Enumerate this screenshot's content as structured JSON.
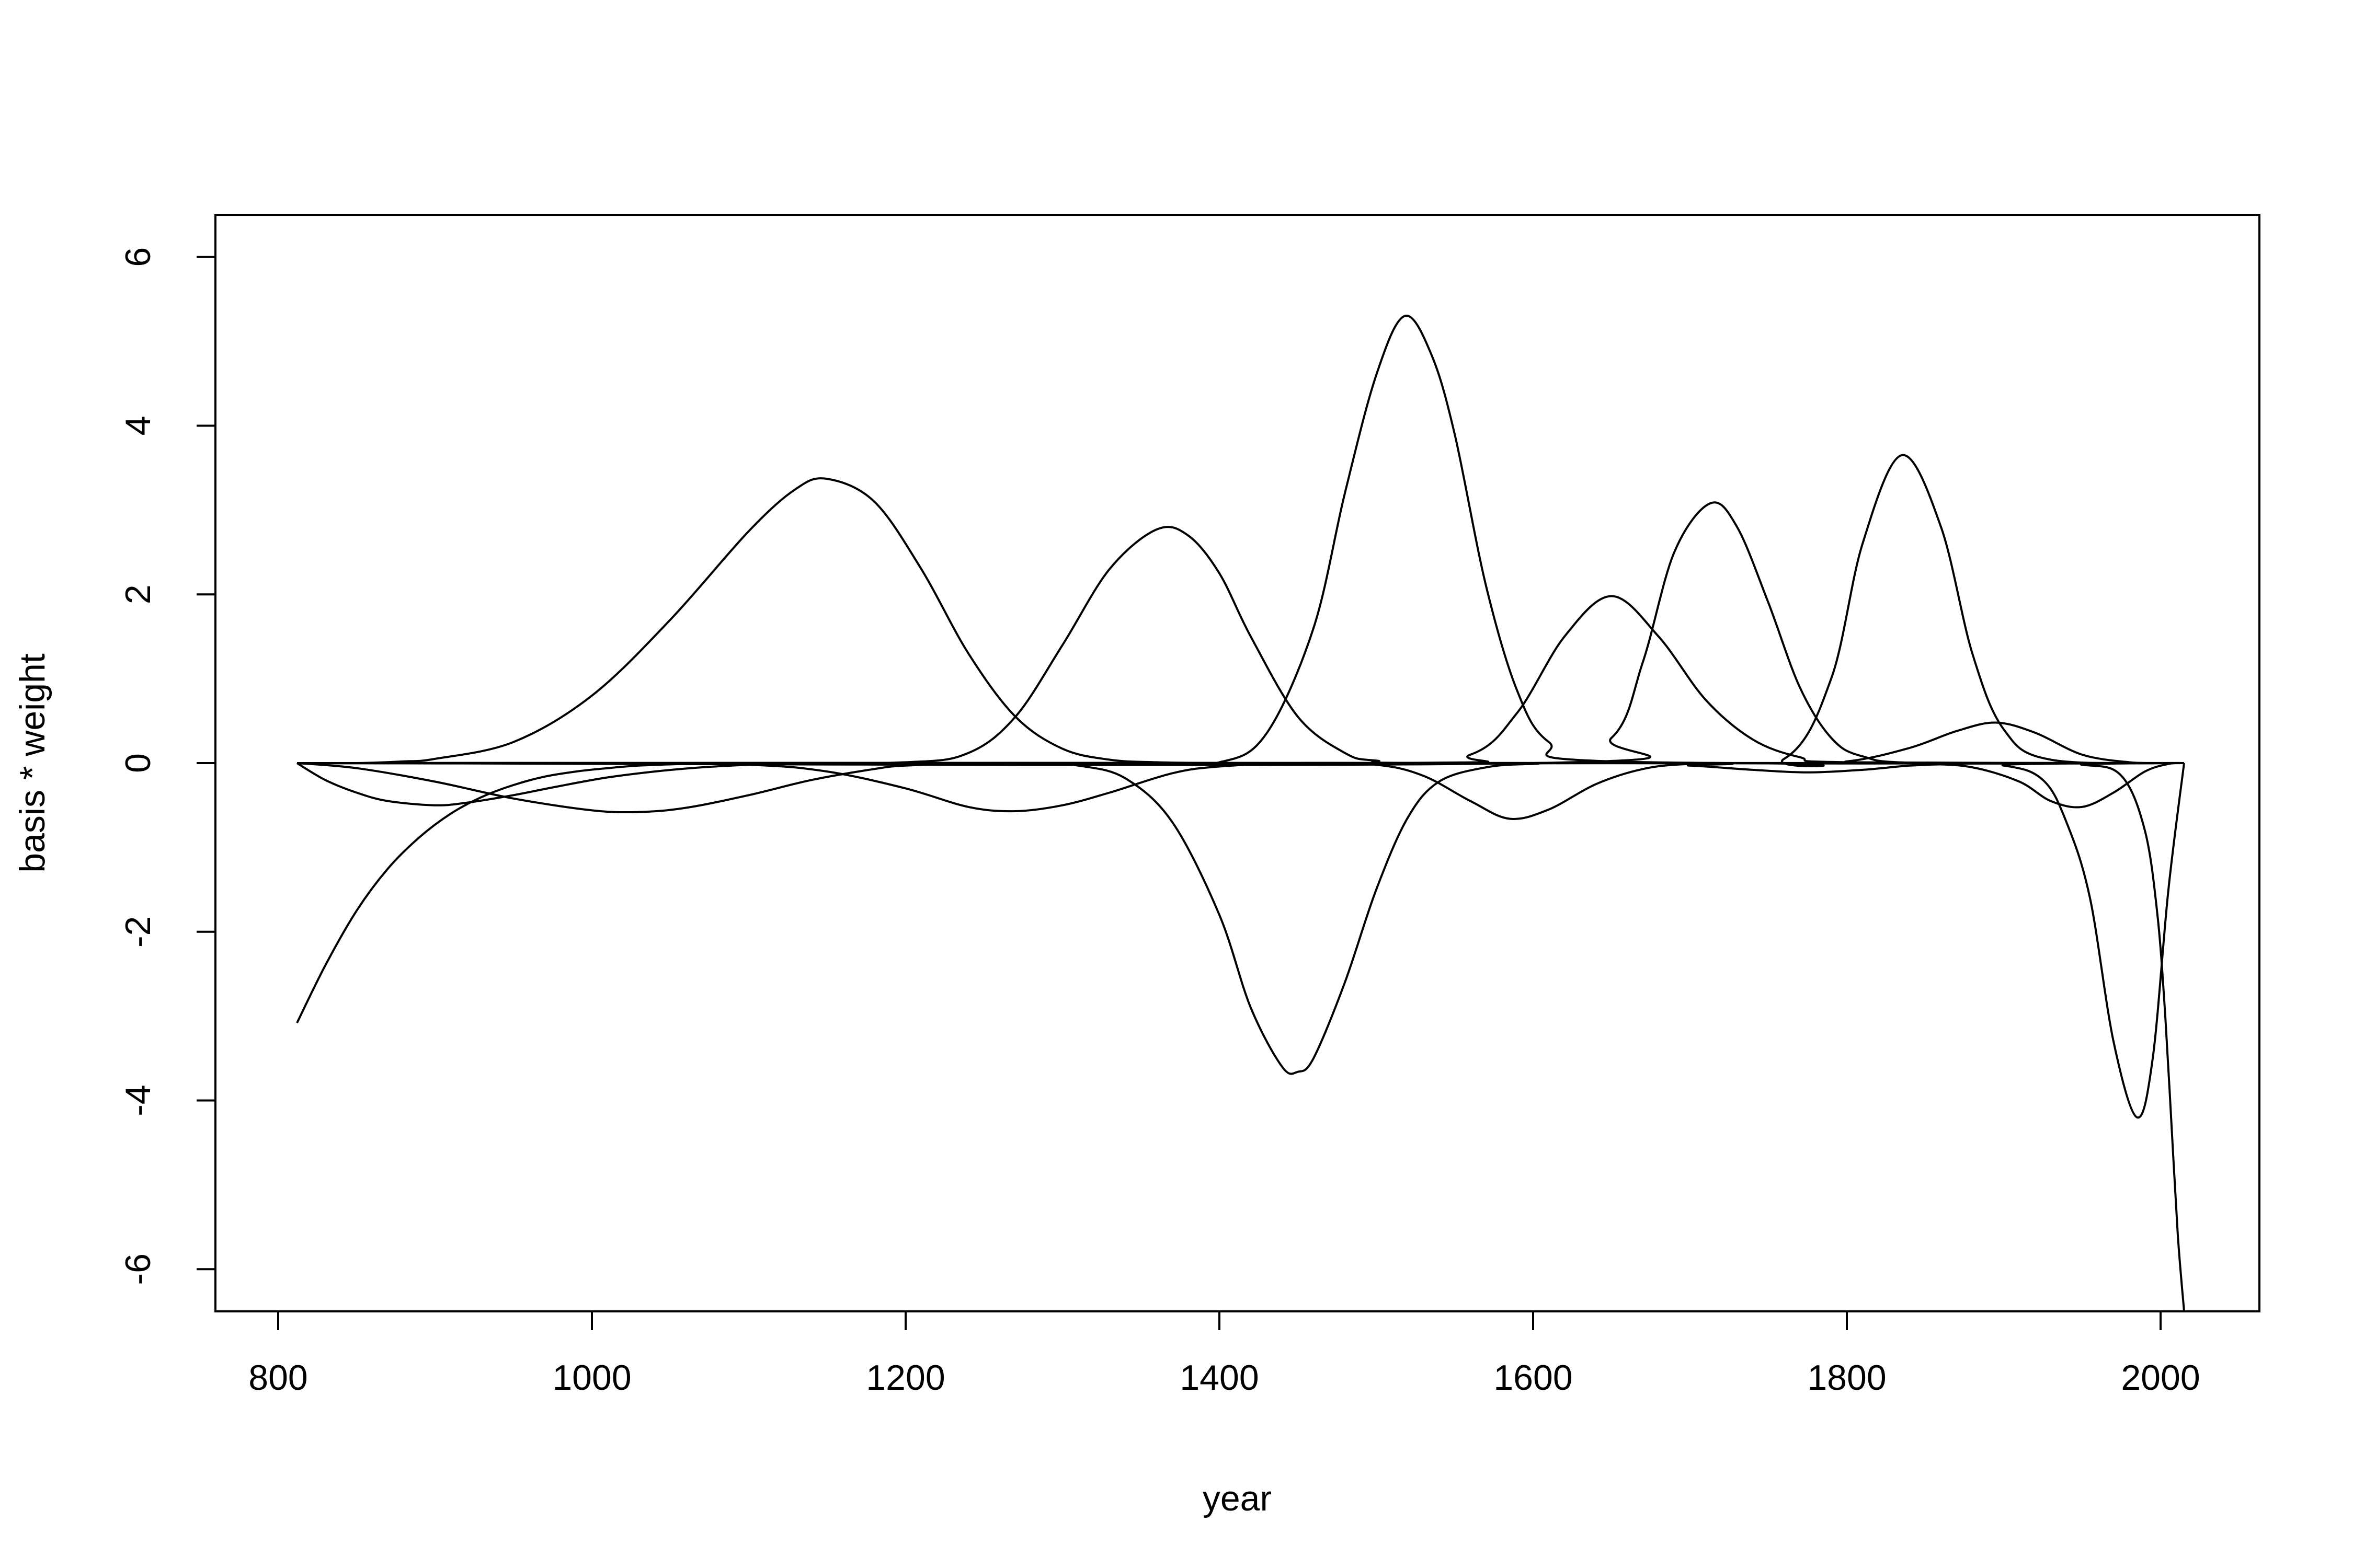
{
  "chart_data": {
    "type": "line",
    "title": "",
    "xlabel": "year",
    "ylabel": "basis * weight",
    "xlim": [
      760,
      2063
    ],
    "ylim": [
      -6.5,
      6.5
    ],
    "x_ticks": [
      800,
      1000,
      1200,
      1400,
      1600,
      1800,
      2000
    ],
    "y_ticks": [
      -6,
      -4,
      -2,
      0,
      2,
      4,
      6
    ],
    "x_tick_labels": [
      "800",
      "1000",
      "1200",
      "1400",
      "1600",
      "1800",
      "2000"
    ],
    "y_tick_labels": [
      "-6",
      "-4",
      "-2",
      "0",
      "2",
      "4",
      "6"
    ],
    "grid": false,
    "legend": "none",
    "line_color": "#000000",
    "series": [
      {
        "x": [
          812,
          830,
          850,
          870,
          890,
          910,
          930,
          950,
          970,
          990,
          1010,
          1030,
          1060,
          1100,
          1150,
          1200,
          1300,
          1400,
          1500,
          1600,
          1700,
          1800,
          1900,
          2015
        ],
        "values": [
          -3.08,
          -2.4,
          -1.75,
          -1.25,
          -0.88,
          -0.6,
          -0.4,
          -0.26,
          -0.16,
          -0.1,
          -0.06,
          -0.03,
          -0.01,
          0,
          0,
          0,
          0,
          0,
          0,
          0,
          0,
          0,
          0,
          0
        ]
      },
      {
        "x": [
          812,
          830,
          850,
          870,
          900,
          920,
          950,
          980,
          1010,
          1040,
          1070,
          1100,
          1130,
          1160,
          1200,
          1300,
          1400,
          1600,
          1800,
          2015
        ],
        "values": [
          0,
          -0.2,
          -0.35,
          -0.45,
          -0.5,
          -0.47,
          -0.38,
          -0.27,
          -0.17,
          -0.1,
          -0.05,
          -0.02,
          0,
          0,
          0,
          0,
          0,
          0,
          0,
          0
        ]
      },
      {
        "x": [
          812,
          850,
          900,
          950,
          1000,
          1030,
          1060,
          1100,
          1140,
          1180,
          1200,
          1250,
          1300,
          1400,
          1600,
          1800,
          2015
        ],
        "values": [
          0,
          -0.06,
          -0.22,
          -0.42,
          -0.56,
          -0.58,
          -0.53,
          -0.38,
          -0.2,
          -0.07,
          -0.03,
          0,
          0,
          0,
          0,
          0,
          0
        ]
      },
      {
        "x": [
          812,
          850,
          880,
          900,
          950,
          1000,
          1050,
          1100,
          1130,
          1150,
          1180,
          1210,
          1240,
          1270,
          1300,
          1330,
          1360,
          1400,
          1450,
          1500,
          1600,
          2015
        ],
        "values": [
          0,
          0,
          0.02,
          0.05,
          0.25,
          0.8,
          1.7,
          2.75,
          3.25,
          3.37,
          3.1,
          2.3,
          1.3,
          0.55,
          0.17,
          0.04,
          0.01,
          0,
          0,
          0,
          0,
          0
        ]
      },
      {
        "x": [
          812,
          1000,
          1100,
          1150,
          1200,
          1240,
          1270,
          1300,
          1330,
          1370,
          1400,
          1450,
          1500,
          1600,
          2015
        ],
        "values": [
          0,
          0,
          -0.02,
          -0.1,
          -0.3,
          -0.52,
          -0.57,
          -0.5,
          -0.35,
          -0.12,
          -0.04,
          0,
          0,
          0,
          0
        ]
      },
      {
        "x": [
          812,
          1100,
          1200,
          1240,
          1270,
          1300,
          1330,
          1360,
          1380,
          1400,
          1420,
          1450,
          1480,
          1500,
          1550,
          2015
        ],
        "values": [
          0,
          0,
          0.01,
          0.12,
          0.55,
          1.4,
          2.3,
          2.77,
          2.7,
          2.25,
          1.5,
          0.55,
          0.12,
          0.03,
          0,
          0
        ]
      },
      {
        "x": [
          812,
          1200,
          1280,
          1310,
          1340,
          1370,
          1400,
          1420,
          1440,
          1450,
          1460,
          1480,
          1500,
          1520,
          1540,
          1570,
          1600,
          1650,
          2015
        ],
        "values": [
          0,
          0,
          0,
          -0.03,
          -0.18,
          -0.7,
          -1.8,
          -2.9,
          -3.6,
          -3.66,
          -3.5,
          -2.6,
          -1.5,
          -0.65,
          -0.22,
          -0.05,
          -0.01,
          0,
          0
        ]
      },
      {
        "x": [
          812,
          1350,
          1400,
          1430,
          1460,
          1480,
          1500,
          1518,
          1535,
          1550,
          1570,
          1590,
          1610,
          1650,
          2015
        ],
        "values": [
          0,
          0,
          0.01,
          0.35,
          1.6,
          3.2,
          4.6,
          5.3,
          4.85,
          3.9,
          2.1,
          0.85,
          0.25,
          0.02,
          0
        ]
      },
      {
        "x": [
          812,
          1450,
          1500,
          1530,
          1560,
          1585,
          1610,
          1640,
          1670,
          1700,
          1750,
          2015
        ],
        "values": [
          0,
          0,
          -0.02,
          -0.15,
          -0.45,
          -0.66,
          -0.55,
          -0.25,
          -0.07,
          -0.01,
          0,
          0
        ]
      },
      {
        "x": [
          812,
          1500,
          1560,
          1590,
          1620,
          1650,
          1680,
          1710,
          1740,
          1770,
          1800,
          2015
        ],
        "values": [
          0,
          0,
          0.1,
          0.6,
          1.5,
          1.98,
          1.5,
          0.75,
          0.28,
          0.07,
          0.01,
          0
        ]
      },
      {
        "x": [
          812,
          1600,
          1650,
          1670,
          1690,
          1713,
          1730,
          1750,
          1770,
          1790,
          1810,
          1850,
          2015
        ],
        "values": [
          0,
          0,
          0.3,
          1.2,
          2.5,
          3.08,
          2.8,
          1.9,
          0.9,
          0.3,
          0.08,
          0,
          0
        ]
      },
      {
        "x": [
          812,
          1650,
          1700,
          1740,
          1775,
          1810,
          1840,
          1870,
          1900,
          2015
        ],
        "values": [
          0,
          0,
          -0.03,
          -0.08,
          -0.11,
          -0.08,
          -0.03,
          -0.01,
          0,
          0
        ]
      },
      {
        "x": [
          812,
          1700,
          1760,
          1790,
          1810,
          1835,
          1860,
          1880,
          1900,
          1930,
          2015
        ],
        "values": [
          0,
          0,
          0.05,
          1.0,
          2.6,
          3.65,
          2.8,
          1.3,
          0.4,
          0.04,
          0
        ]
      },
      {
        "x": [
          812,
          1750,
          1800,
          1840,
          1870,
          1895,
          1920,
          1950,
          1980,
          2000,
          2015
        ],
        "values": [
          0,
          0,
          0.02,
          0.18,
          0.38,
          0.48,
          0.36,
          0.1,
          0.01,
          0,
          0
        ]
      },
      {
        "x": [
          812,
          1800,
          1850,
          1880,
          1910,
          1930,
          1950,
          1970,
          1990,
          2005,
          2015
        ],
        "values": [
          0,
          0,
          -0.01,
          -0.05,
          -0.22,
          -0.45,
          -0.52,
          -0.35,
          -0.1,
          -0.01,
          0
        ]
      },
      {
        "x": [
          812,
          1850,
          1900,
          1925,
          1940,
          1955,
          1970,
          1985,
          1995,
          2005,
          2015
        ],
        "values": [
          0,
          0,
          -0.03,
          -0.2,
          -0.7,
          -1.6,
          -3.3,
          -4.2,
          -3.5,
          -1.5,
          0
        ]
      },
      {
        "x": [
          812,
          1900,
          1950,
          1975,
          1990,
          1998,
          2003,
          2007,
          2011,
          2015
        ],
        "values": [
          0,
          0,
          -0.02,
          -0.15,
          -0.8,
          -1.8,
          -3.0,
          -4.3,
          -5.6,
          -6.5
        ]
      }
    ]
  }
}
